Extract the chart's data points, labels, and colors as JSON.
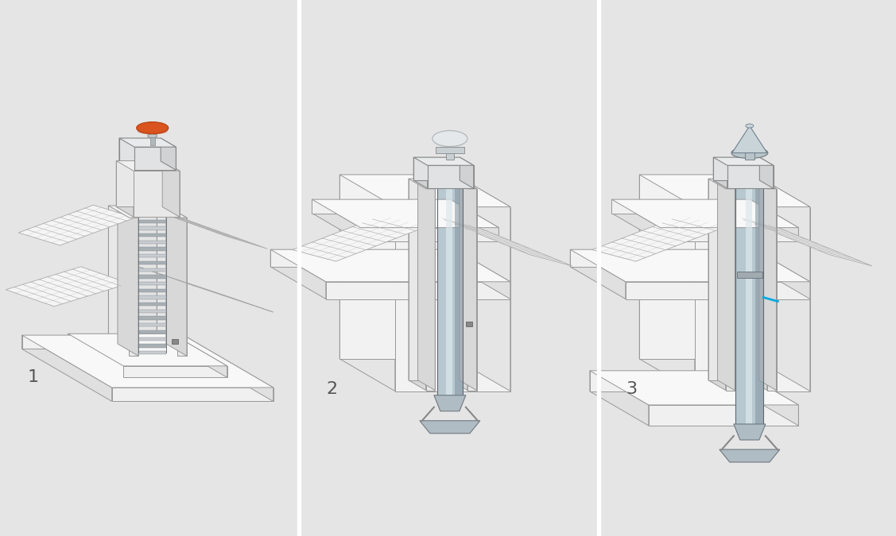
{
  "background_color": "#e5e5e5",
  "white": "#ffffff",
  "near_white": "#f5f5f5",
  "light_gray": "#ebebeb",
  "mid_gray": "#d8d8d8",
  "dark_gray": "#aaaaaa",
  "edge_color": "#999999",
  "chimney_edge": "#888888",
  "steel_light": "#c8d2d8",
  "steel_mid": "#b0bcc4",
  "steel_dark": "#8898a4",
  "steel_highlight": "#dde4e8",
  "flexible_light": "#c8ccd0",
  "flexible_dark": "#909498",
  "orange": "#d9541e",
  "orange_dark": "#b84010",
  "blue": "#00aadd",
  "label_color": "#555555",
  "label_fontsize": 16,
  "divider_color": "#ffffff",
  "panel_centers": [
    187,
    563,
    940
  ],
  "panel_borders": [
    375,
    752
  ]
}
